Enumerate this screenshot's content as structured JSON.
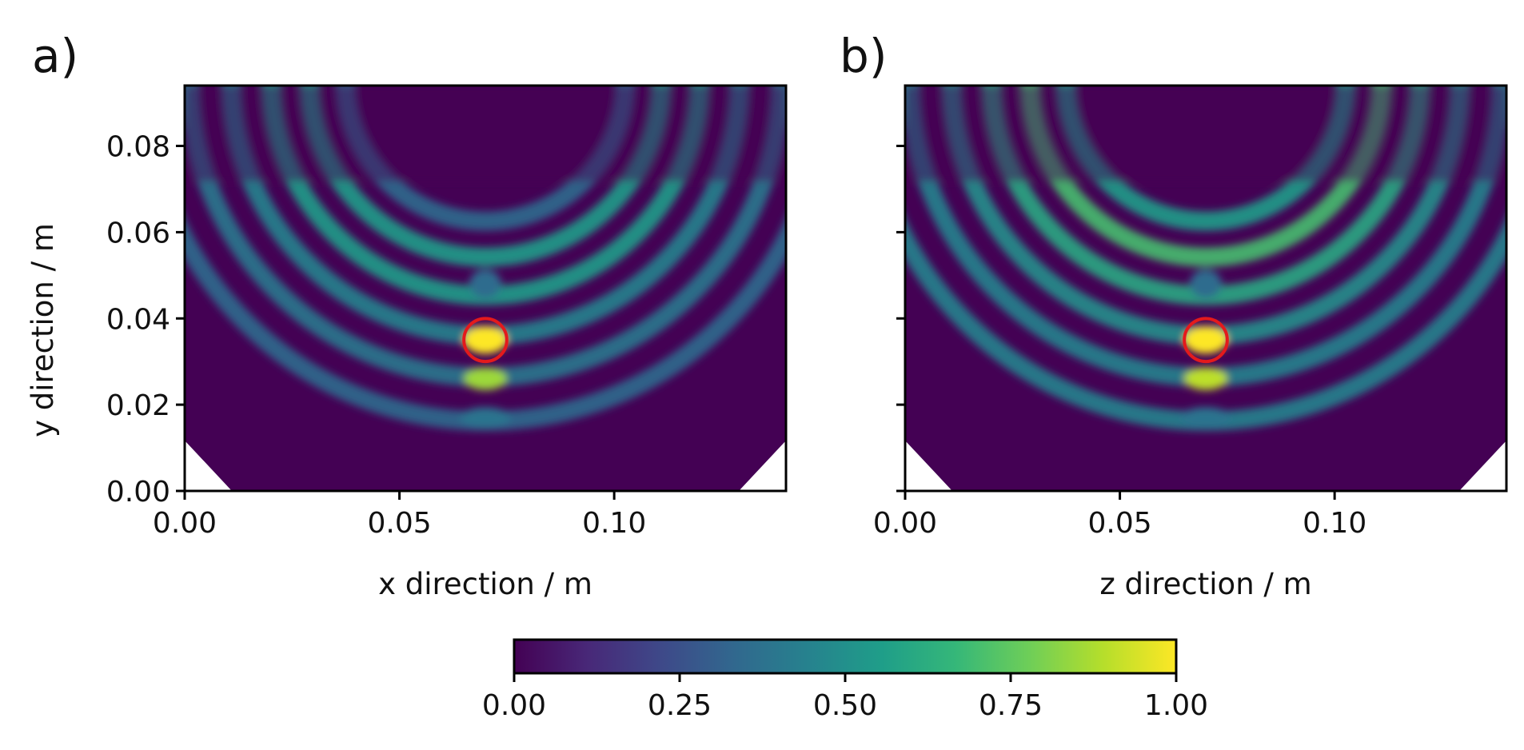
{
  "chart_data": [
    {
      "type": "heatmap",
      "panel_label": "a)",
      "xlabel": "x direction / m",
      "ylabel": "y direction / m",
      "xlim": [
        0.0,
        0.14
      ],
      "ylim": [
        0.0,
        0.094
      ],
      "x_ticks": [
        0.0,
        0.05,
        0.1
      ],
      "x_tick_labels": [
        "0.00",
        "0.05",
        "0.10"
      ],
      "y_ticks": [
        0.0,
        0.02,
        0.04,
        0.06,
        0.08
      ],
      "y_tick_labels": [
        "0.00",
        "0.02",
        "0.04",
        "0.06",
        "0.08"
      ],
      "target_circle": {
        "center": [
          0.07,
          0.035
        ],
        "radius": 0.005,
        "color": "#e41a1c"
      },
      "peak": {
        "x": 0.07,
        "y": 0.035,
        "value": 1.0
      },
      "secondary_peak": {
        "x": 0.07,
        "y": 0.026,
        "value": 0.85
      },
      "side_lobe_ring_values": [
        0.35,
        0.55,
        0.55,
        0.45,
        0.4,
        0.35
      ]
    },
    {
      "type": "heatmap",
      "panel_label": "b)",
      "xlabel": "z direction / m",
      "ylabel": "",
      "xlim": [
        0.0,
        0.14
      ],
      "ylim": [
        0.0,
        0.094
      ],
      "x_ticks": [
        0.0,
        0.05,
        0.1
      ],
      "x_tick_labels": [
        "0.00",
        "0.05",
        "0.10"
      ],
      "y_ticks": [
        0.0,
        0.02,
        0.04,
        0.06,
        0.08
      ],
      "y_tick_labels": [],
      "target_circle": {
        "center": [
          0.07,
          0.035
        ],
        "radius": 0.005,
        "color": "#e41a1c"
      },
      "peak": {
        "x": 0.07,
        "y": 0.035,
        "value": 1.0
      },
      "secondary_peak": {
        "x": 0.07,
        "y": 0.026,
        "value": 0.9
      },
      "side_lobe_ring_values": [
        0.55,
        0.7,
        0.6,
        0.5,
        0.45,
        0.45
      ]
    }
  ],
  "colorbar": {
    "colormap": "viridis",
    "range": [
      0.0,
      1.0
    ],
    "ticks": [
      0.0,
      0.25,
      0.5,
      0.75,
      1.0
    ],
    "tick_labels": [
      "0.00",
      "0.25",
      "0.50",
      "0.75",
      "1.00"
    ],
    "orientation": "horizontal"
  },
  "colors": {
    "background": "#440154",
    "circle": "#e41a1c",
    "viridis": [
      "#440154",
      "#482878",
      "#3e4989",
      "#31688e",
      "#26828e",
      "#1f9e89",
      "#35b779",
      "#6ece58",
      "#b5de2b",
      "#fde725"
    ]
  }
}
